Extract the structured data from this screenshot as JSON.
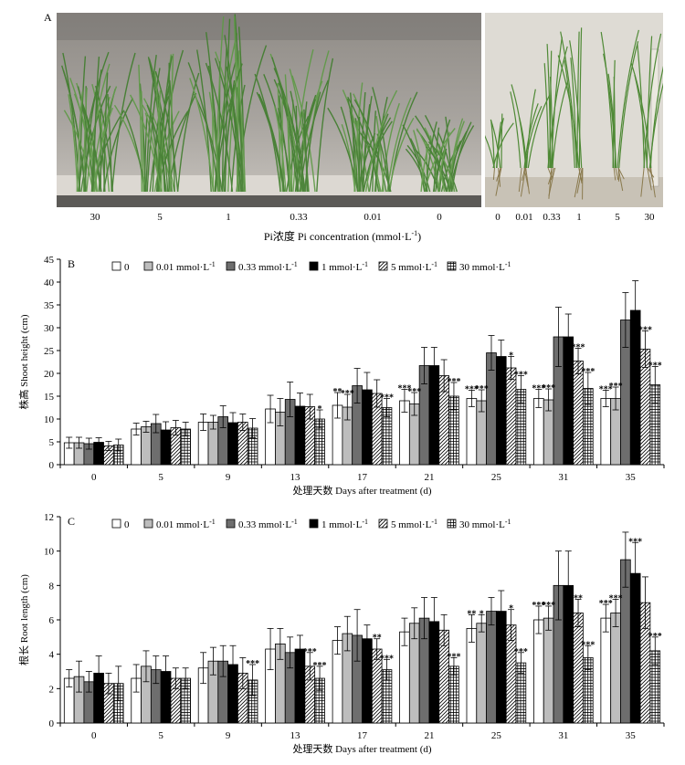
{
  "panel_a": {
    "label": "A",
    "left_categories": [
      "30",
      "5",
      "1",
      "0.33",
      "0.01",
      "0"
    ],
    "right_categories": [
      "0",
      "0.01",
      "0.33",
      "1",
      "5",
      "30"
    ],
    "caption_cn": "Pi浓度 Pi concentration (mmol·L",
    "caption_sup": "-1",
    "caption_end": ")"
  },
  "legend": [
    {
      "label": "0",
      "pattern": "white"
    },
    {
      "label": "0.01 mmol·L",
      "sup": "-1",
      "pattern": "lightgray"
    },
    {
      "label": "0.33 mmol·L",
      "sup": "-1",
      "pattern": "darkgray"
    },
    {
      "label": "1 mmol·L",
      "sup": "-1",
      "pattern": "black"
    },
    {
      "label": "5 mmol·L",
      "sup": "-1",
      "pattern": "hatch"
    },
    {
      "label": "30 mmol·L",
      "sup": "-1",
      "pattern": "grid"
    }
  ],
  "colors": {
    "lightgray": "#bdbdbd",
    "darkgray": "#6e6e6e",
    "black": "#000000",
    "white": "#ffffff"
  },
  "chart_data": [
    {
      "panel": "B",
      "type": "bar",
      "ylabel": "株高 Shoot height (cm)",
      "xlabel": "处理天数 Days after treatment (d)",
      "ylim": [
        0,
        45
      ],
      "yticks": [
        0,
        5,
        10,
        15,
        20,
        25,
        30,
        35,
        40,
        45
      ],
      "categories": [
        "0",
        "5",
        "9",
        "13",
        "17",
        "21",
        "25",
        "31",
        "35"
      ],
      "series": [
        {
          "name": "0",
          "values": [
            4.8,
            7.8,
            9.3,
            12.2,
            13.0,
            14.0,
            14.5,
            14.5,
            14.5
          ],
          "errors": [
            1.2,
            1.3,
            1.8,
            3.0,
            2.8,
            2.5,
            1.8,
            2.0,
            1.8
          ]
        },
        {
          "name": "0.01 mmol·L-1",
          "values": [
            4.8,
            8.3,
            9.3,
            11.5,
            12.6,
            13.3,
            14.0,
            14.2,
            14.5
          ],
          "errors": [
            1.2,
            1.2,
            1.5,
            3.0,
            2.8,
            2.5,
            2.4,
            2.4,
            2.5
          ]
        },
        {
          "name": "0.33 mmol·L-1",
          "values": [
            4.6,
            9.0,
            10.5,
            14.3,
            17.3,
            21.7,
            24.5,
            28.0,
            31.7
          ],
          "errors": [
            1.2,
            2.0,
            2.4,
            3.8,
            3.8,
            4.0,
            3.8,
            6.5,
            6.0
          ]
        },
        {
          "name": "1 mmol·L-1",
          "values": [
            4.9,
            7.6,
            9.2,
            12.8,
            16.4,
            21.7,
            23.7,
            28.0,
            33.8
          ],
          "errors": [
            1.0,
            1.8,
            2.2,
            2.9,
            3.8,
            4.0,
            3.6,
            5.0,
            6.5
          ]
        },
        {
          "name": "5 mmol·L-1",
          "values": [
            4.1,
            8.1,
            9.3,
            12.7,
            15.6,
            19.5,
            21.2,
            22.7,
            25.3
          ],
          "errors": [
            1.0,
            1.6,
            1.8,
            2.7,
            3.0,
            3.5,
            2.5,
            2.8,
            4.0
          ]
        },
        {
          "name": "30 mmol·L-1",
          "values": [
            4.3,
            7.8,
            8.0,
            10.0,
            12.5,
            15.0,
            16.5,
            16.7,
            17.5
          ],
          "errors": [
            1.3,
            1.5,
            2.1,
            2.0,
            2.0,
            3.0,
            3.0,
            3.5,
            4.0
          ]
        }
      ],
      "annotations": [
        {
          "category": 3,
          "series": 5,
          "text": "*"
        },
        {
          "category": 4,
          "series": 0,
          "text": "**"
        },
        {
          "category": 4,
          "series": 1,
          "text": "***"
        },
        {
          "category": 4,
          "series": 5,
          "text": "***"
        },
        {
          "category": 5,
          "series": 0,
          "text": "***"
        },
        {
          "category": 5,
          "series": 1,
          "text": "***"
        },
        {
          "category": 5,
          "series": 5,
          "text": "***"
        },
        {
          "category": 6,
          "series": 0,
          "text": "***"
        },
        {
          "category": 6,
          "series": 1,
          "text": "***"
        },
        {
          "category": 6,
          "series": 4,
          "text": "*"
        },
        {
          "category": 6,
          "series": 5,
          "text": "***"
        },
        {
          "category": 7,
          "series": 0,
          "text": "***"
        },
        {
          "category": 7,
          "series": 1,
          "text": "***"
        },
        {
          "category": 7,
          "series": 4,
          "text": "***"
        },
        {
          "category": 7,
          "series": 5,
          "text": "***"
        },
        {
          "category": 8,
          "series": 0,
          "text": "***"
        },
        {
          "category": 8,
          "series": 1,
          "text": "***"
        },
        {
          "category": 8,
          "series": 4,
          "text": "***"
        },
        {
          "category": 8,
          "series": 5,
          "text": "***"
        }
      ]
    },
    {
      "panel": "C",
      "type": "bar",
      "ylabel": "根长 Root length (cm)",
      "xlabel": "处理天数 Days after treatment (d)",
      "ylim": [
        0,
        12
      ],
      "yticks": [
        0,
        2,
        4,
        6,
        8,
        10,
        12
      ],
      "categories": [
        "0",
        "5",
        "9",
        "13",
        "17",
        "21",
        "25",
        "31",
        "35"
      ],
      "series": [
        {
          "name": "0",
          "values": [
            2.6,
            2.6,
            3.2,
            4.3,
            4.8,
            5.3,
            5.5,
            6.0,
            6.1
          ],
          "errors": [
            0.5,
            0.8,
            0.9,
            1.2,
            0.8,
            0.8,
            0.8,
            0.8,
            0.8
          ]
        },
        {
          "name": "0.01 mmol·L-1",
          "values": [
            2.7,
            3.3,
            3.6,
            4.6,
            5.2,
            5.8,
            5.8,
            6.1,
            6.4
          ],
          "errors": [
            0.9,
            0.9,
            0.8,
            0.9,
            1.0,
            0.9,
            0.5,
            0.7,
            0.8
          ]
        },
        {
          "name": "0.33 mmol·L-1",
          "values": [
            2.4,
            3.1,
            3.6,
            4.1,
            5.1,
            6.1,
            6.5,
            8.0,
            9.5
          ],
          "errors": [
            0.6,
            0.8,
            0.9,
            0.9,
            1.5,
            1.2,
            0.8,
            2.0,
            1.6
          ]
        },
        {
          "name": "1 mmol·L-1",
          "values": [
            2.9,
            3.0,
            3.4,
            4.3,
            4.9,
            5.9,
            6.5,
            8.0,
            8.7
          ],
          "errors": [
            1.0,
            0.9,
            1.1,
            0.8,
            0.8,
            1.4,
            1.2,
            2.0,
            1.8
          ]
        },
        {
          "name": "5 mmol·L-1",
          "values": [
            2.3,
            2.6,
            2.9,
            3.3,
            4.3,
            5.4,
            5.7,
            6.4,
            7.0
          ],
          "errors": [
            0.6,
            0.6,
            0.9,
            0.8,
            0.6,
            0.9,
            0.9,
            0.8,
            1.5
          ]
        },
        {
          "name": "30 mmol·L-1",
          "values": [
            2.3,
            2.6,
            2.5,
            2.6,
            3.1,
            3.3,
            3.5,
            3.8,
            4.2
          ],
          "errors": [
            1.0,
            0.6,
            0.9,
            0.7,
            0.6,
            0.5,
            0.6,
            0.7,
            0.8
          ]
        }
      ],
      "annotations": [
        {
          "category": 2,
          "series": 5,
          "text": "***"
        },
        {
          "category": 3,
          "series": 4,
          "text": "***"
        },
        {
          "category": 3,
          "series": 5,
          "text": "***"
        },
        {
          "category": 4,
          "series": 4,
          "text": "**"
        },
        {
          "category": 4,
          "series": 5,
          "text": "***"
        },
        {
          "category": 5,
          "series": 5,
          "text": "***"
        },
        {
          "category": 6,
          "series": 0,
          "text": "**"
        },
        {
          "category": 6,
          "series": 1,
          "text": "*"
        },
        {
          "category": 6,
          "series": 4,
          "text": "*"
        },
        {
          "category": 6,
          "series": 5,
          "text": "***"
        },
        {
          "category": 7,
          "series": 0,
          "text": "***"
        },
        {
          "category": 7,
          "series": 1,
          "text": "***"
        },
        {
          "category": 7,
          "series": 4,
          "text": "**"
        },
        {
          "category": 7,
          "series": 5,
          "text": "***"
        },
        {
          "category": 8,
          "series": 0,
          "text": "***"
        },
        {
          "category": 8,
          "series": 1,
          "text": "***"
        },
        {
          "category": 8,
          "series": 3,
          "text": "***"
        },
        {
          "category": 8,
          "series": 5,
          "text": "***"
        }
      ]
    }
  ]
}
